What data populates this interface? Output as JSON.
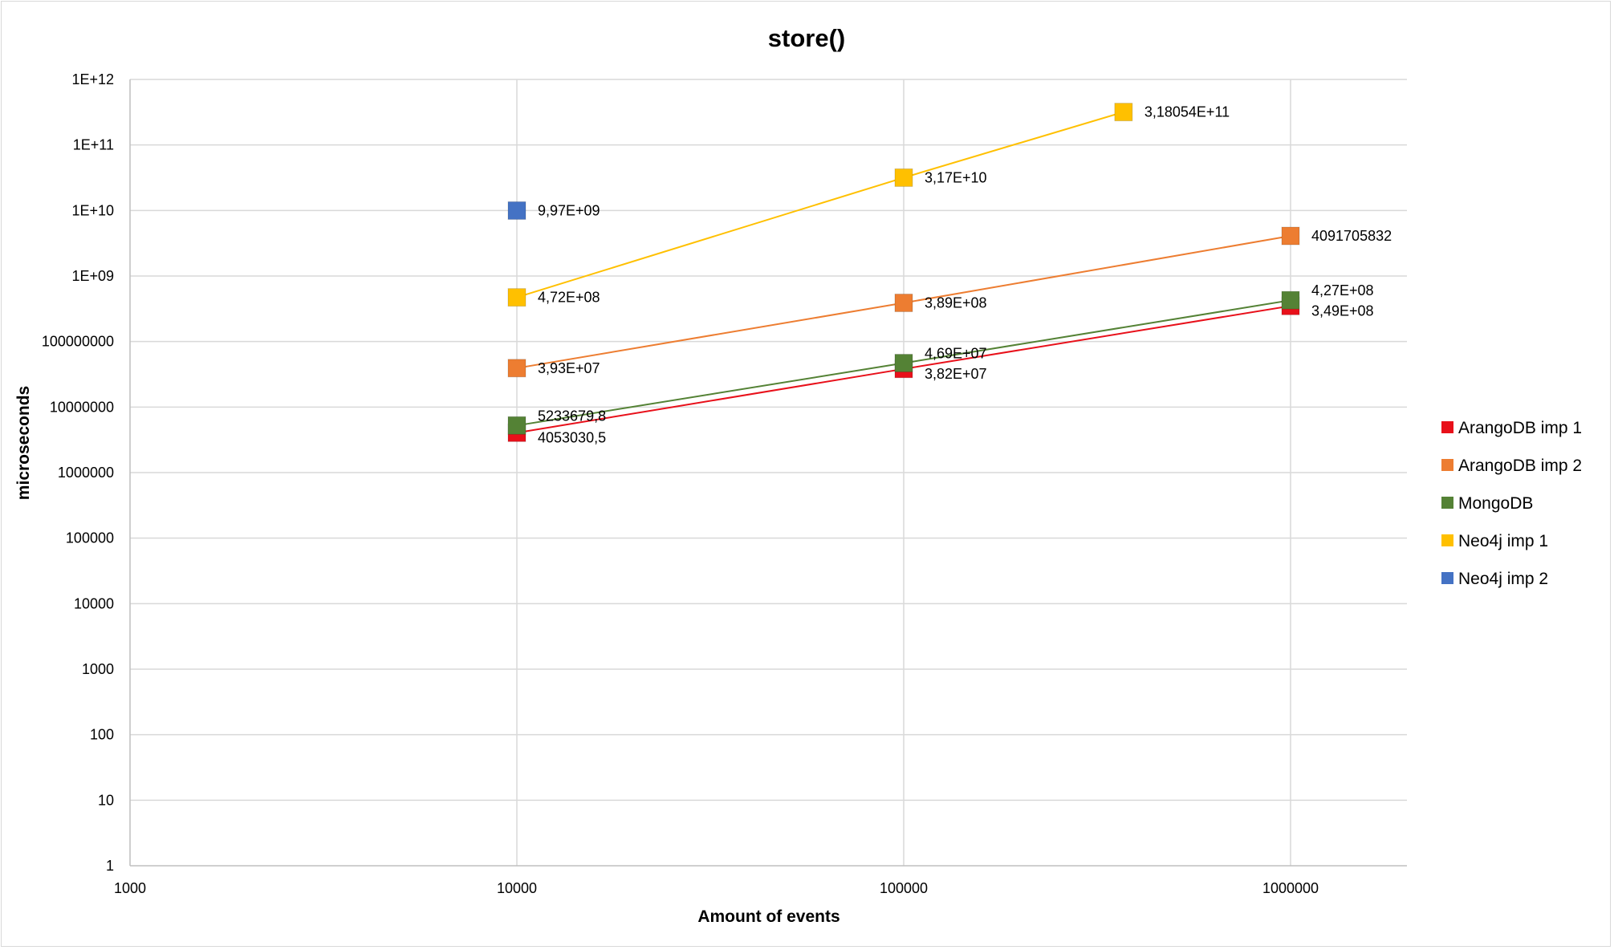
{
  "chart_data": {
    "type": "scatter",
    "title": "store()",
    "xlabel": "Amount of events",
    "ylabel": "microseconds",
    "x_scale": "log",
    "y_scale": "log",
    "xlim": [
      1000,
      2000000
    ],
    "ylim": [
      1,
      1000000000000
    ],
    "x_ticks": [
      1000,
      10000,
      100000,
      1000000
    ],
    "x_tick_labels": [
      "1000",
      "10000",
      "100000",
      "1000000"
    ],
    "y_ticks": [
      1,
      10,
      100,
      1000,
      10000,
      100000,
      1000000,
      10000000,
      100000000,
      1000000000,
      10000000000,
      100000000000,
      1000000000000
    ],
    "y_tick_labels": [
      "1",
      "10",
      "100",
      "1000",
      "10000",
      "100000",
      "1000000",
      "10000000",
      "100000000",
      "1E+09",
      "1E+10",
      "1E+11",
      "1E+12"
    ],
    "grid": true,
    "legend_position": "right",
    "series": [
      {
        "name": "ArangoDB imp 1",
        "color": "#e8101a",
        "marker": "square",
        "line": true,
        "points": [
          {
            "x": 10000,
            "y": 4053030.5,
            "label": "4053030,5"
          },
          {
            "x": 100000,
            "y": 38200000,
            "label": "3,82E+07"
          },
          {
            "x": 1000000,
            "y": 349000000,
            "label": "3,49E+08"
          }
        ]
      },
      {
        "name": "ArangoDB imp 2",
        "color": "#ed7d31",
        "marker": "square",
        "line": true,
        "points": [
          {
            "x": 10000,
            "y": 39300000,
            "label": "3,93E+07"
          },
          {
            "x": 100000,
            "y": 389000000,
            "label": "3,89E+08"
          },
          {
            "x": 1000000,
            "y": 4091705832,
            "label": "4091705832"
          }
        ]
      },
      {
        "name": "MongoDB",
        "color": "#548235",
        "marker": "square",
        "line": true,
        "points": [
          {
            "x": 10000,
            "y": 5233679.8,
            "label": "5233679,8"
          },
          {
            "x": 100000,
            "y": 46900000,
            "label": "4,69E+07"
          },
          {
            "x": 1000000,
            "y": 427000000,
            "label": "4,27E+08"
          }
        ]
      },
      {
        "name": "Neo4j imp 1",
        "color": "#ffc000",
        "marker": "square",
        "line": true,
        "points": [
          {
            "x": 10000,
            "y": 472000000,
            "label": "4,72E+08"
          },
          {
            "x": 100000,
            "y": 31700000000,
            "label": "3,17E+10"
          },
          {
            "x": 370000,
            "y": 318054000000,
            "label": "3,18054E+11"
          }
        ]
      },
      {
        "name": "Neo4j imp 2",
        "color": "#4472c4",
        "marker": "square",
        "line": false,
        "points": [
          {
            "x": 10000,
            "y": 9970000000,
            "label": "9,97E+09"
          }
        ]
      }
    ]
  }
}
